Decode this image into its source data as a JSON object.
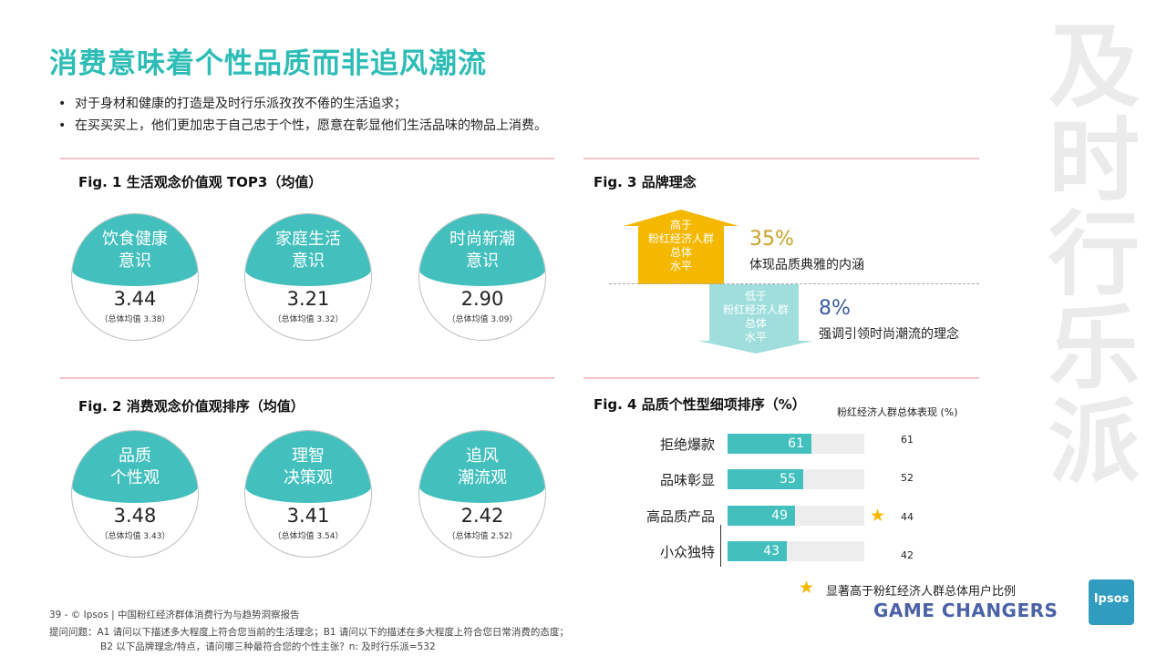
{
  "title": "消费意味着个性品质而非追风潮流",
  "bullets": [
    "对于身材和健康的打造是及时行乐派孜孜不倦的生活追求；",
    "在买买买上，他们更加忠于自己忠于个性，愿意在彰显他们生活品味的物品上消费。"
  ],
  "side_title": "及时行乐派",
  "fig1": {
    "title": "Fig. 1  生活观念价值观 TOP3（均值）",
    "items": [
      {
        "label_l1": "饮食健康",
        "label_l2": "意识",
        "value": "3.44",
        "avg": "（总体均值 3.38）"
      },
      {
        "label_l1": "家庭生活",
        "label_l2": "意识",
        "value": "3.21",
        "avg": "（总体均值 3.32）"
      },
      {
        "label_l1": "时尚新潮",
        "label_l2": "意识",
        "value": "2.90",
        "avg": "（总体均值 3.09）"
      }
    ]
  },
  "fig2": {
    "title": "Fig. 2  消费观念价值观排序（均值）",
    "items": [
      {
        "label_l1": "品质",
        "label_l2": "个性观",
        "value": "3.48",
        "avg": "（总体均值 3.43）"
      },
      {
        "label_l1": "理智",
        "label_l2": "决策观",
        "value": "3.41",
        "avg": "（总体均值 3.54）"
      },
      {
        "label_l1": "追风",
        "label_l2": "潮流观",
        "value": "2.42",
        "avg": "（总体均值 2.52）"
      }
    ]
  },
  "fig3": {
    "title": "Fig. 3  品牌理念",
    "up": {
      "lines": [
        "高于",
        "粉红经济人群",
        "总体",
        "水平"
      ],
      "pct": "35%",
      "desc": "体现品质典雅的内涵",
      "color": "#f5b800"
    },
    "down": {
      "lines": [
        "低于",
        "粉红经济人群",
        "总体",
        "水平"
      ],
      "pct": "8%",
      "desc": "强调引领时尚潮流的理念",
      "color": "#9fdedd"
    }
  },
  "fig4": {
    "title": "Fig. 4  品质个性型细项排序（%）",
    "overall_header": "粉红经济人群总体表现 (%)",
    "legend": "显著高于粉红经济人群总体用户比例",
    "max": 100,
    "chart_data": {
      "type": "bar",
      "categories": [
        "拒绝爆款",
        "品味彰显",
        "高品质产品",
        "小众独特"
      ],
      "values": [
        61,
        55,
        49,
        43
      ],
      "overall": [
        61,
        52,
        44,
        42
      ],
      "significant": [
        false,
        false,
        true,
        false
      ]
    },
    "labels": {
      "v0": "61",
      "v1": "55",
      "v2": "49",
      "v3": "43",
      "o0": "61",
      "o1": "52",
      "o2": "44",
      "o3": "42"
    }
  },
  "footer": {
    "line1": "39  -  © Ipsos  |  中国粉红经济群体消费行为与趋势洞察报告",
    "line2": "提问问题：A1 请问以下描述多大程度上符合您当前的生活理念；B1 请问以下的描述在多大程度上符合您日常消费的态度；",
    "line3": "B2 以下品牌理念/特点，请问哪三种最符合您的个性主张？n: 及时行乐派=532"
  },
  "brand": {
    "game_changers": "GAME CHANGERS",
    "ipsos": "Ipsos"
  },
  "colors": {
    "teal": "#43c0bd",
    "title": "#2dbdb6",
    "gold": "#f5b800",
    "pink_line": "#f2c3c7"
  }
}
